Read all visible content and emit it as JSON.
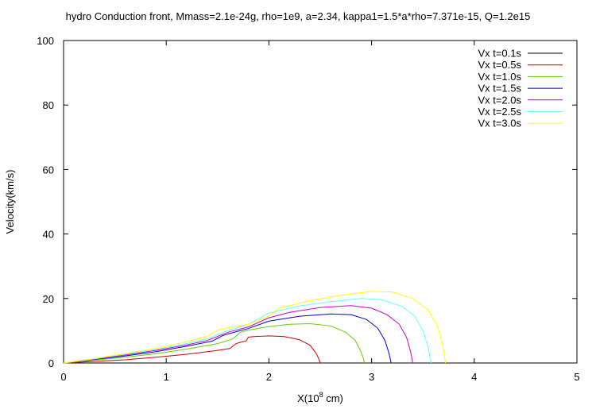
{
  "chart_data": {
    "type": "line",
    "title": "hydro Conduction front, Mmass=2.1e-24g, rho=1e9, a=2.34, kappa1=1.5*a*rho=7.371e-15, Q=1.2e15",
    "xlabel_prefix": "X(10",
    "xlabel_sup": "8",
    "xlabel_suffix": " cm)",
    "ylabel": "Velocity(km/s)",
    "xlim": [
      0,
      5
    ],
    "ylim": [
      0,
      100
    ],
    "xticks": [
      "0",
      "1",
      "2",
      "3",
      "4",
      "5"
    ],
    "yticks": [
      "0",
      "20",
      "40",
      "60",
      "80",
      "100"
    ],
    "grid": false,
    "legend_position": "top-right",
    "series": [
      {
        "name": "Vx t=0.1s",
        "color": "#000000",
        "x": [],
        "y": []
      },
      {
        "name": "Vx t=0.5s",
        "color": "#cc0000",
        "x": [
          0,
          0.3,
          0.6,
          0.9,
          1.2,
          1.5,
          1.62,
          1.68,
          1.72,
          1.78,
          1.8,
          1.85,
          2.0,
          2.15,
          2.3,
          2.4,
          2.46,
          2.49,
          2.5
        ],
        "y": [
          0,
          0.5,
          1.0,
          1.8,
          2.7,
          3.9,
          4.5,
          6.0,
          6.4,
          6.9,
          8.0,
          8.2,
          8.4,
          8.2,
          7.2,
          5.5,
          3.0,
          1.0,
          0
        ]
      },
      {
        "name": "Vx t=1.0s",
        "color": "#66cc00",
        "x": [
          0,
          0.3,
          0.6,
          0.9,
          1.2,
          1.5,
          1.65,
          1.72,
          1.8,
          2.0,
          2.2,
          2.4,
          2.6,
          2.75,
          2.84,
          2.89,
          2.92,
          2.93
        ],
        "y": [
          0,
          0.9,
          1.8,
          2.9,
          4.3,
          6.0,
          7.5,
          9.5,
          10.2,
          11.3,
          12.0,
          12.2,
          11.5,
          9.5,
          7.0,
          4.0,
          1.5,
          0
        ]
      },
      {
        "name": "Vx t=1.5s",
        "color": "#0000cc",
        "x": [
          0,
          0.3,
          0.6,
          0.9,
          1.2,
          1.45,
          1.55,
          1.6,
          1.8,
          2.0,
          2.3,
          2.6,
          2.8,
          2.95,
          3.06,
          3.13,
          3.17,
          3.19
        ],
        "y": [
          0,
          1.1,
          2.2,
          3.5,
          5.2,
          6.8,
          8.5,
          9.0,
          10.7,
          13.0,
          14.5,
          15.2,
          15.0,
          13.5,
          10.8,
          7.0,
          3.0,
          0
        ]
      },
      {
        "name": "Vx t=2.0s",
        "color": "#cc00cc",
        "x": [
          0,
          0.3,
          0.6,
          0.9,
          1.2,
          1.4,
          1.6,
          1.8,
          2.0,
          2.2,
          2.5,
          2.8,
          3.0,
          3.15,
          3.27,
          3.34,
          3.38,
          3.4
        ],
        "y": [
          0,
          1.2,
          2.5,
          3.9,
          5.6,
          7.0,
          9.5,
          11.2,
          14.0,
          15.7,
          17.2,
          17.8,
          17.0,
          15.0,
          12.0,
          8.0,
          3.5,
          0
        ]
      },
      {
        "name": "Vx t=2.5s",
        "color": "#66ffff",
        "x": [
          0,
          0.3,
          0.6,
          0.9,
          1.2,
          1.4,
          1.6,
          1.8,
          2.0,
          2.3,
          2.6,
          2.9,
          3.1,
          3.3,
          3.42,
          3.5,
          3.55,
          3.58
        ],
        "y": [
          0,
          1.3,
          2.7,
          4.2,
          6.0,
          7.5,
          10.0,
          12.0,
          15.5,
          17.7,
          19.0,
          20.0,
          19.6,
          17.5,
          14.5,
          10.0,
          5.0,
          0
        ]
      },
      {
        "name": "Vx t=3.0s",
        "color": "#ffff00",
        "x": [
          0,
          0.3,
          0.6,
          0.9,
          1.2,
          1.4,
          1.5,
          1.8,
          2.0,
          2.1,
          2.4,
          2.7,
          3.0,
          3.2,
          3.4,
          3.55,
          3.64,
          3.69,
          3.72
        ],
        "y": [
          0,
          1.4,
          2.9,
          4.5,
          6.6,
          8.2,
          10.2,
          12.0,
          14.5,
          17.0,
          19.3,
          21.0,
          22.2,
          22.0,
          20.0,
          16.5,
          11.5,
          6.0,
          0
        ]
      }
    ]
  }
}
